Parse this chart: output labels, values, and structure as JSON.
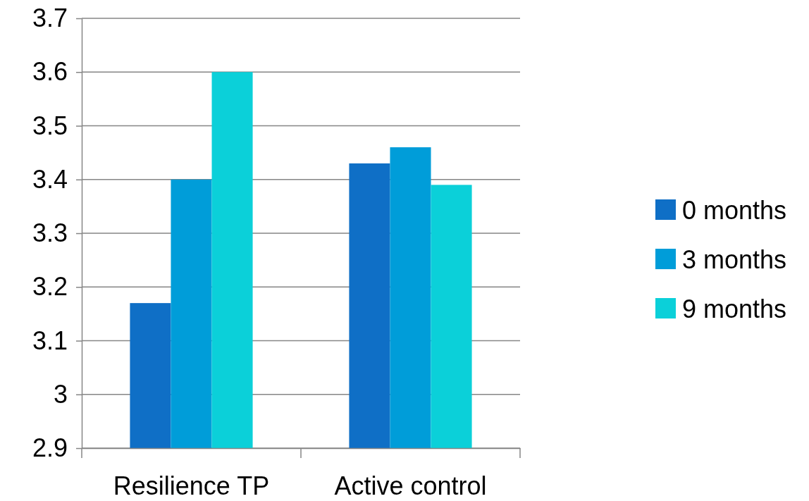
{
  "chart_data": {
    "type": "bar",
    "categories": [
      "Resilience TP",
      "Active control"
    ],
    "series": [
      {
        "name": "0 months",
        "color": "#0f6fc6",
        "values": [
          3.17,
          3.43
        ]
      },
      {
        "name": "3 months",
        "color": "#009dd9",
        "values": [
          3.4,
          3.46
        ]
      },
      {
        "name": "9 months",
        "color": "#0bd0d9",
        "values": [
          3.6,
          3.39
        ]
      }
    ],
    "ylim": [
      2.9,
      3.7
    ],
    "yticks": [
      2.9,
      3,
      3.1,
      3.2,
      3.3,
      3.4,
      3.5,
      3.6,
      3.7
    ],
    "grid": "y",
    "legend": "right"
  }
}
